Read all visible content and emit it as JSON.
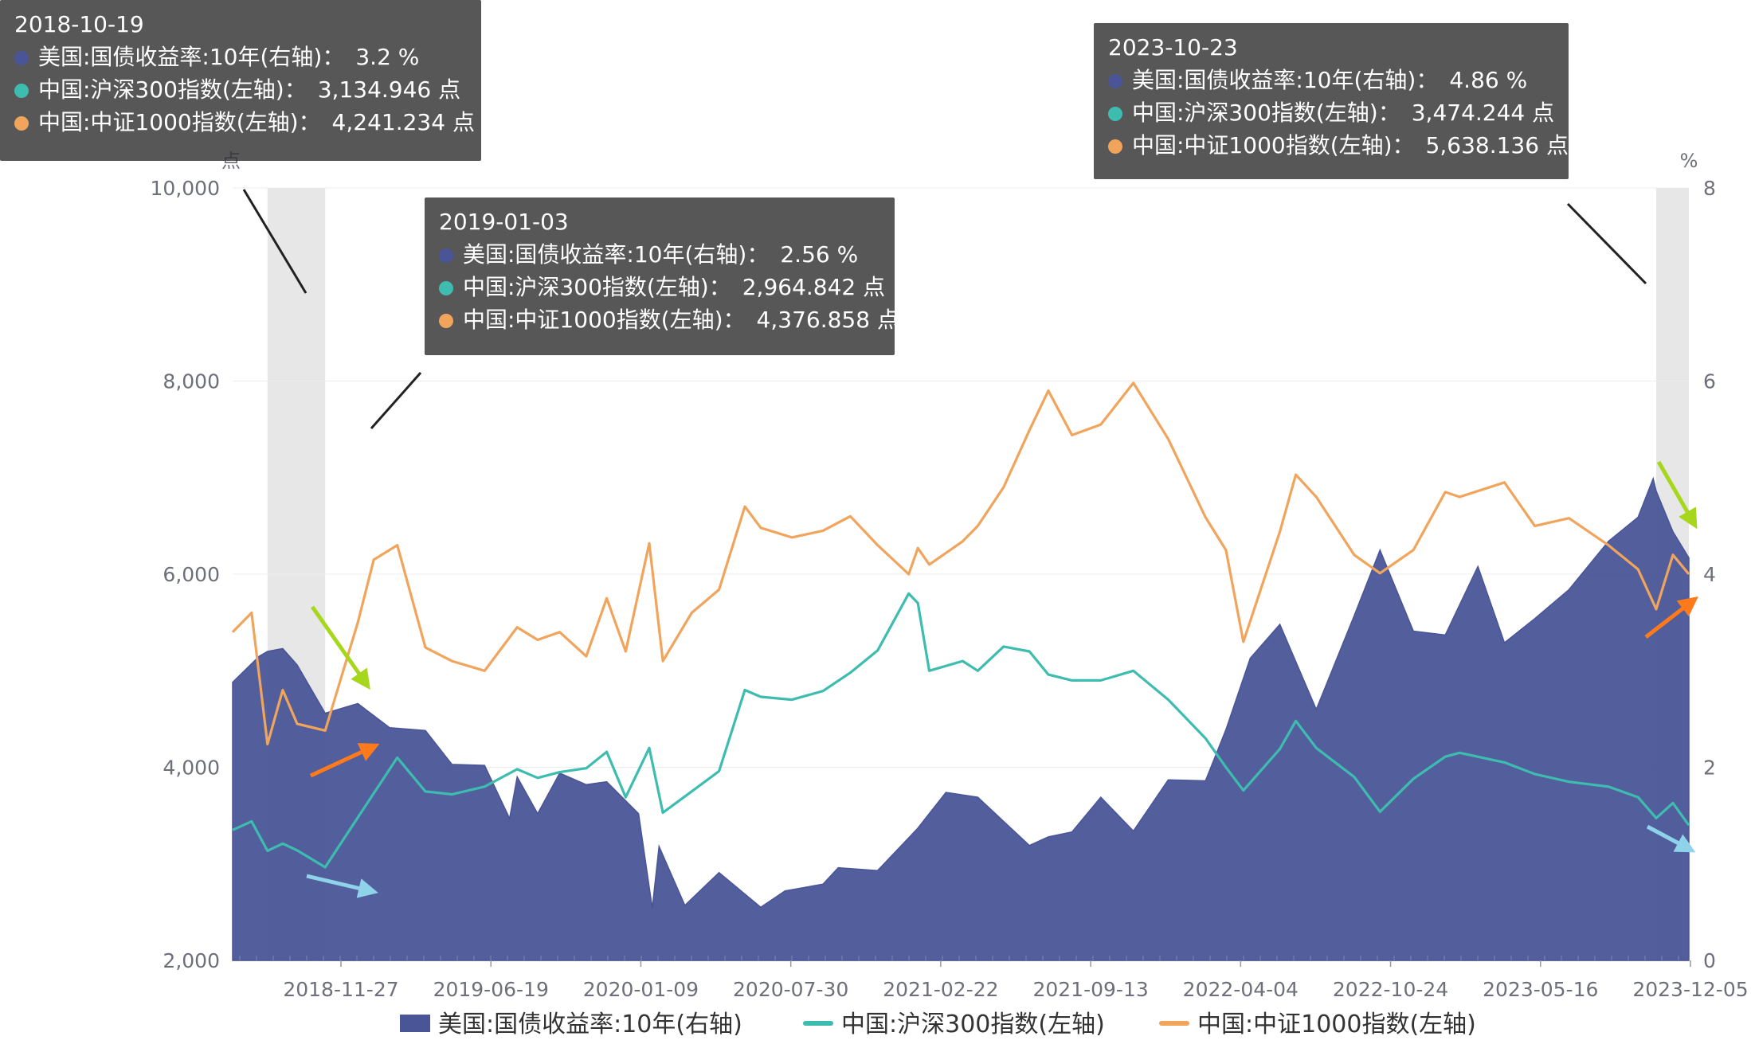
{
  "chart_data": {
    "type": "line",
    "title": "",
    "left_axis": {
      "unit": "点",
      "min": 2000,
      "max": 10000,
      "ticks": [
        "2,000",
        "4,000",
        "6,000",
        "8,000",
        "10,000"
      ]
    },
    "right_axis": {
      "unit": "%",
      "min": 0,
      "max": 8,
      "ticks": [
        "0",
        "2",
        "4",
        "6",
        "8"
      ]
    },
    "x_ticks": [
      "2018-11-27",
      "2019-06-19",
      "2020-01-09",
      "2020-07-30",
      "2021-02-22",
      "2021-09-13",
      "2022-04-04",
      "2022-10-24",
      "2023-05-16",
      "2023-12-05"
    ],
    "x_start": "2018-09-03",
    "x_end": "2023-12-05",
    "grid": true,
    "legend_position": "bottom",
    "highlight_bands": [
      [
        "2018-10-19",
        "2019-01-03"
      ],
      [
        "2023-10-23",
        "2023-12-05"
      ]
    ],
    "series": [
      {
        "name": "美国:国债收益率:10年(右轴)",
        "type": "area",
        "axis": "right",
        "color": "#4a5598",
        "points": [
          [
            "2018-09-03",
            2.88
          ],
          [
            "2018-10-08",
            3.15
          ],
          [
            "2018-10-19",
            3.2
          ],
          [
            "2018-11-08",
            3.23
          ],
          [
            "2018-11-27",
            3.06
          ],
          [
            "2019-01-03",
            2.56
          ],
          [
            "2019-02-15",
            2.66
          ],
          [
            "2019-03-29",
            2.41
          ],
          [
            "2019-05-15",
            2.38
          ],
          [
            "2019-06-19",
            2.03
          ],
          [
            "2019-08-01",
            2.02
          ],
          [
            "2019-09-03",
            1.47
          ],
          [
            "2019-09-13",
            1.9
          ],
          [
            "2019-10-10",
            1.52
          ],
          [
            "2019-11-08",
            1.94
          ],
          [
            "2019-12-13",
            1.82
          ],
          [
            "2020-01-09",
            1.85
          ],
          [
            "2020-02-20",
            1.52
          ],
          [
            "2020-03-09",
            0.54
          ],
          [
            "2020-03-18",
            1.18
          ],
          [
            "2020-04-21",
            0.57
          ],
          [
            "2020-06-05",
            0.91
          ],
          [
            "2020-07-30",
            0.55
          ],
          [
            "2020-08-31",
            0.72
          ],
          [
            "2020-10-20",
            0.79
          ],
          [
            "2020-11-09",
            0.96
          ],
          [
            "2020-12-31",
            0.93
          ],
          [
            "2021-02-22",
            1.37
          ],
          [
            "2021-03-31",
            1.74
          ],
          [
            "2021-05-12",
            1.69
          ],
          [
            "2021-07-19",
            1.19
          ],
          [
            "2021-08-13",
            1.28
          ],
          [
            "2021-09-13",
            1.33
          ],
          [
            "2021-10-21",
            1.69
          ],
          [
            "2021-12-03",
            1.34
          ],
          [
            "2022-01-18",
            1.87
          ],
          [
            "2022-03-08",
            1.86
          ],
          [
            "2022-04-04",
            2.39
          ],
          [
            "2022-05-06",
            3.13
          ],
          [
            "2022-06-14",
            3.48
          ],
          [
            "2022-08-01",
            2.6
          ],
          [
            "2022-09-20",
            3.57
          ],
          [
            "2022-10-24",
            4.25
          ],
          [
            "2022-12-07",
            3.41
          ],
          [
            "2023-01-18",
            3.37
          ],
          [
            "2023-03-02",
            4.08
          ],
          [
            "2023-04-06",
            3.29
          ],
          [
            "2023-05-16",
            3.54
          ],
          [
            "2023-06-30",
            3.84
          ],
          [
            "2023-08-21",
            4.34
          ],
          [
            "2023-09-29",
            4.59
          ],
          [
            "2023-10-19",
            4.99
          ],
          [
            "2023-10-23",
            4.86
          ],
          [
            "2023-11-14",
            4.44
          ],
          [
            "2023-12-05",
            4.17
          ]
        ]
      },
      {
        "name": "中国:沪深300指数(左轴)",
        "type": "line",
        "axis": "left",
        "color": "#3dbcaf",
        "points": [
          [
            "2018-09-03",
            3350
          ],
          [
            "2018-09-28",
            3440
          ],
          [
            "2018-10-19",
            3135
          ],
          [
            "2018-11-08",
            3210
          ],
          [
            "2018-11-27",
            3140
          ],
          [
            "2019-01-03",
            2965
          ],
          [
            "2019-02-15",
            3480
          ],
          [
            "2019-04-08",
            4100
          ],
          [
            "2019-05-15",
            3750
          ],
          [
            "2019-06-19",
            3720
          ],
          [
            "2019-08-01",
            3800
          ],
          [
            "2019-09-13",
            3980
          ],
          [
            "2019-10-10",
            3890
          ],
          [
            "2019-11-08",
            3950
          ],
          [
            "2019-12-13",
            3990
          ],
          [
            "2020-01-09",
            4160
          ],
          [
            "2020-02-03",
            3690
          ],
          [
            "2020-03-05",
            4200
          ],
          [
            "2020-03-23",
            3530
          ],
          [
            "2020-04-30",
            3750
          ],
          [
            "2020-06-05",
            3960
          ],
          [
            "2020-07-09",
            4800
          ],
          [
            "2020-07-30",
            4730
          ],
          [
            "2020-09-09",
            4700
          ],
          [
            "2020-10-20",
            4790
          ],
          [
            "2020-11-25",
            4980
          ],
          [
            "2020-12-31",
            5210
          ],
          [
            "2021-02-10",
            5800
          ],
          [
            "2021-02-22",
            5700
          ],
          [
            "2021-03-09",
            5000
          ],
          [
            "2021-04-22",
            5100
          ],
          [
            "2021-05-12",
            5000
          ],
          [
            "2021-06-15",
            5250
          ],
          [
            "2021-07-19",
            5200
          ],
          [
            "2021-08-13",
            4960
          ],
          [
            "2021-09-13",
            4900
          ],
          [
            "2021-10-21",
            4900
          ],
          [
            "2021-12-03",
            5000
          ],
          [
            "2022-01-18",
            4700
          ],
          [
            "2022-03-08",
            4300
          ],
          [
            "2022-04-04",
            4000
          ],
          [
            "2022-04-27",
            3760
          ],
          [
            "2022-06-14",
            4190
          ],
          [
            "2022-07-05",
            4480
          ],
          [
            "2022-08-01",
            4200
          ],
          [
            "2022-09-20",
            3900
          ],
          [
            "2022-10-24",
            3540
          ],
          [
            "2022-12-07",
            3880
          ],
          [
            "2023-01-18",
            4110
          ],
          [
            "2023-02-06",
            4150
          ],
          [
            "2023-04-06",
            4050
          ],
          [
            "2023-05-16",
            3930
          ],
          [
            "2023-06-30",
            3850
          ],
          [
            "2023-08-21",
            3800
          ],
          [
            "2023-09-29",
            3690
          ],
          [
            "2023-10-23",
            3474
          ],
          [
            "2023-11-14",
            3630
          ],
          [
            "2023-12-05",
            3400
          ]
        ]
      },
      {
        "name": "中国:中证1000指数(左轴)",
        "type": "line",
        "axis": "left",
        "color": "#f0a45c",
        "points": [
          [
            "2018-09-03",
            5400
          ],
          [
            "2018-09-28",
            5600
          ],
          [
            "2018-10-19",
            4240
          ],
          [
            "2018-11-08",
            4800
          ],
          [
            "2018-11-27",
            4450
          ],
          [
            "2019-01-03",
            4380
          ],
          [
            "2019-02-15",
            5500
          ],
          [
            "2019-03-08",
            6150
          ],
          [
            "2019-04-08",
            6300
          ],
          [
            "2019-05-15",
            5240
          ],
          [
            "2019-06-19",
            5100
          ],
          [
            "2019-08-01",
            5000
          ],
          [
            "2019-09-13",
            5450
          ],
          [
            "2019-10-10",
            5320
          ],
          [
            "2019-11-08",
            5400
          ],
          [
            "2019-12-13",
            5150
          ],
          [
            "2020-01-09",
            5750
          ],
          [
            "2020-02-03",
            5200
          ],
          [
            "2020-03-05",
            6320
          ],
          [
            "2020-03-23",
            5100
          ],
          [
            "2020-04-30",
            5600
          ],
          [
            "2020-06-05",
            5840
          ],
          [
            "2020-07-09",
            6700
          ],
          [
            "2020-07-30",
            6480
          ],
          [
            "2020-09-09",
            6380
          ],
          [
            "2020-10-20",
            6450
          ],
          [
            "2020-11-25",
            6600
          ],
          [
            "2020-12-31",
            6300
          ],
          [
            "2021-02-10",
            6000
          ],
          [
            "2021-02-22",
            6270
          ],
          [
            "2021-03-09",
            6100
          ],
          [
            "2021-04-22",
            6340
          ],
          [
            "2021-05-12",
            6500
          ],
          [
            "2021-06-15",
            6900
          ],
          [
            "2021-07-19",
            7490
          ],
          [
            "2021-08-13",
            7900
          ],
          [
            "2021-09-13",
            7440
          ],
          [
            "2021-10-21",
            7550
          ],
          [
            "2021-12-03",
            7980
          ],
          [
            "2022-01-18",
            7400
          ],
          [
            "2022-03-08",
            6590
          ],
          [
            "2022-04-04",
            6250
          ],
          [
            "2022-04-27",
            5300
          ],
          [
            "2022-06-14",
            6440
          ],
          [
            "2022-07-05",
            7030
          ],
          [
            "2022-08-01",
            6800
          ],
          [
            "2022-09-20",
            6200
          ],
          [
            "2022-10-24",
            6010
          ],
          [
            "2022-12-07",
            6250
          ],
          [
            "2023-01-18",
            6850
          ],
          [
            "2023-02-06",
            6800
          ],
          [
            "2023-04-06",
            6950
          ],
          [
            "2023-05-16",
            6500
          ],
          [
            "2023-06-30",
            6580
          ],
          [
            "2023-08-21",
            6300
          ],
          [
            "2023-09-29",
            6050
          ],
          [
            "2023-10-23",
            5638
          ],
          [
            "2023-11-14",
            6200
          ],
          [
            "2023-12-05",
            6000
          ]
        ]
      }
    ],
    "tooltips": [
      {
        "date": "2018-10-19",
        "rows": [
          {
            "label": "美国:国债收益率:10年(右轴)：",
            "value": "3.2 %",
            "color": "#4a5598"
          },
          {
            "label": "中国:沪深300指数(左轴)：",
            "value": "3,134.946 点",
            "color": "#3dbcaf"
          },
          {
            "label": "中国:中证1000指数(左轴)：",
            "value": "4,241.234 点",
            "color": "#f0a45c"
          }
        ]
      },
      {
        "date": "2019-01-03",
        "rows": [
          {
            "label": "美国:国债收益率:10年(右轴)：",
            "value": "2.56 %",
            "color": "#4a5598"
          },
          {
            "label": "中国:沪深300指数(左轴)：",
            "value": "2,964.842 点",
            "color": "#3dbcaf"
          },
          {
            "label": "中国:中证1000指数(左轴)：",
            "value": "4,376.858 点",
            "color": "#f0a45c"
          }
        ]
      },
      {
        "date": "2023-10-23",
        "rows": [
          {
            "label": "美国:国债收益率:10年(右轴)：",
            "value": "4.86 %",
            "color": "#4a5598"
          },
          {
            "label": "中国:沪深300指数(左轴)：",
            "value": "3,474.244 点",
            "color": "#3dbcaf"
          },
          {
            "label": "中国:中证1000指数(左轴)：",
            "value": "5,638.136 点",
            "color": "#f0a45c"
          }
        ]
      }
    ],
    "arrow_colors": {
      "yield": "#a6d71c",
      "csi1000": "#ff7a1a",
      "csi300": "#8fd3ea",
      "leader": "#222222"
    }
  }
}
